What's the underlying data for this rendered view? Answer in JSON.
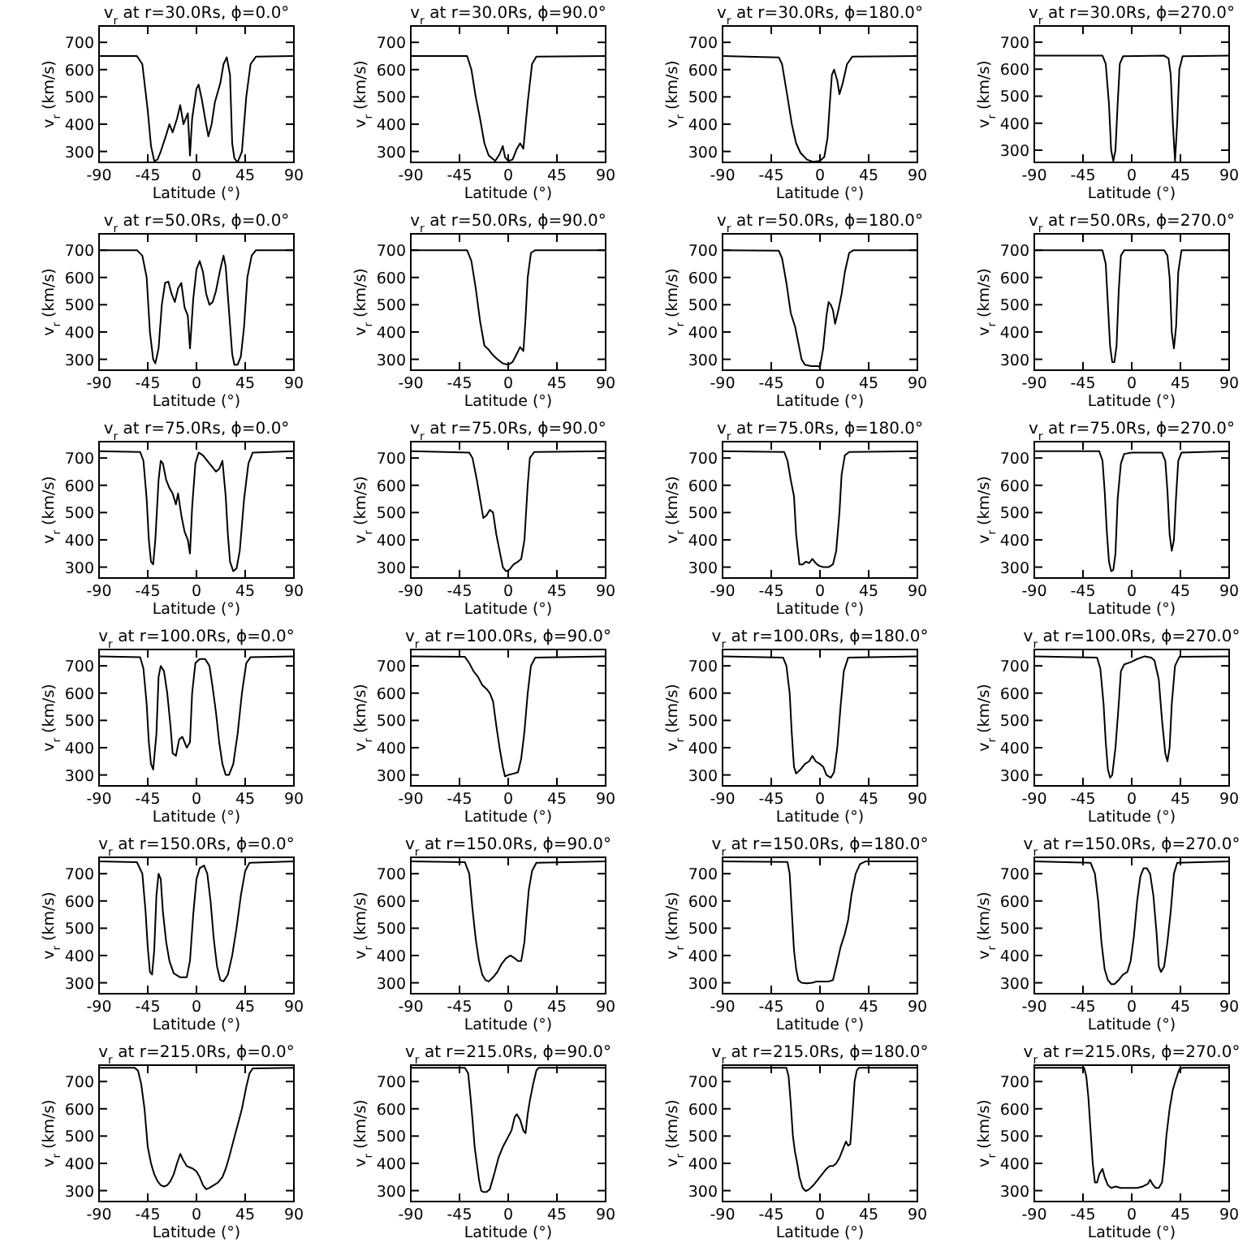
{
  "chart_data": [
    {
      "type": "line",
      "title": "v$_{r}$ at r=30.0Rs, ϕ=0.0°",
      "xlabel": "Latitude (°)",
      "ylabel": "v$_{r}$ (km/s)",
      "xlim": [
        -90,
        90
      ],
      "ylim": [
        260,
        760
      ],
      "xticks": [
        -90,
        -45,
        0,
        45,
        90
      ],
      "yticks": [
        300,
        400,
        500,
        600,
        700
      ],
      "color": "#000000",
      "x": [
        -90,
        -55,
        -50,
        -45,
        -42,
        -39,
        -36,
        -33,
        -28,
        -25,
        -22,
        -18,
        -15,
        -12,
        -8,
        -6,
        -4,
        0,
        2,
        5,
        8,
        11,
        14,
        17,
        22,
        25,
        28,
        31,
        33,
        35,
        38,
        42,
        46,
        50,
        55,
        90
      ],
      "values": [
        650,
        650,
        620,
        450,
        320,
        265,
        270,
        300,
        360,
        400,
        370,
        420,
        470,
        400,
        440,
        285,
        420,
        530,
        545,
        490,
        420,
        355,
        400,
        480,
        550,
        620,
        645,
        580,
        330,
        275,
        260,
        300,
        500,
        620,
        648,
        650
      ]
    },
    {
      "type": "line",
      "title": "v$_{r}$ at r=30.0Rs, ϕ=90.0°",
      "xlabel": "Latitude (°)",
      "ylabel": "v$_{r}$ (km/s)",
      "xlim": [
        -90,
        90
      ],
      "ylim": [
        260,
        760
      ],
      "xticks": [
        -90,
        -45,
        0,
        45,
        90
      ],
      "yticks": [
        300,
        400,
        500,
        600,
        700
      ],
      "color": "#000000",
      "x": [
        -90,
        -38,
        -34,
        -30,
        -26,
        -22,
        -18,
        -12,
        -8,
        -5,
        -3,
        0,
        4,
        8,
        11,
        14,
        18,
        22,
        26,
        90
      ],
      "values": [
        650,
        650,
        600,
        500,
        420,
        330,
        285,
        265,
        290,
        320,
        280,
        265,
        270,
        310,
        330,
        310,
        480,
        620,
        648,
        650
      ]
    },
    {
      "type": "line",
      "title": "v$_{r}$ at r=30.0Rs, ϕ=180.0°",
      "xlabel": "Latitude (°)",
      "ylabel": "v$_{r}$ (km/s)",
      "xlim": [
        -90,
        90
      ],
      "ylim": [
        260,
        760
      ],
      "xticks": [
        -90,
        -45,
        0,
        45,
        90
      ],
      "yticks": [
        300,
        400,
        500,
        600,
        700
      ],
      "color": "#000000",
      "x": [
        -90,
        -38,
        -35,
        -30,
        -26,
        -22,
        -18,
        -12,
        -6,
        0,
        4,
        7,
        9,
        11,
        13,
        16,
        18,
        21,
        25,
        30,
        90
      ],
      "values": [
        650,
        645,
        620,
        500,
        400,
        330,
        295,
        270,
        262,
        265,
        280,
        350,
        470,
        580,
        600,
        560,
        510,
        550,
        620,
        648,
        650
      ]
    },
    {
      "type": "line",
      "title": "v$_{r}$ at r=30.0Rs, ϕ=270.0°",
      "xlabel": "Latitude (°)",
      "ylabel": "v$_{r}$ (km/s)",
      "xlim": [
        -90,
        90
      ],
      "ylim": [
        255,
        760
      ],
      "xticks": [
        -90,
        -45,
        0,
        45,
        90
      ],
      "yticks": [
        300,
        400,
        500,
        600,
        700
      ],
      "color": "#000000",
      "x": [
        -90,
        -27,
        -24,
        -21,
        -19,
        -17,
        -15,
        -13,
        -11,
        -8,
        30,
        34,
        36,
        38,
        40,
        42,
        44,
        47,
        90
      ],
      "values": [
        650,
        650,
        620,
        470,
        300,
        260,
        300,
        470,
        620,
        648,
        650,
        640,
        580,
        400,
        260,
        400,
        600,
        648,
        650
      ]
    },
    {
      "type": "line",
      "title": "v$_{r}$ at r=50.0Rs, ϕ=0.0°",
      "xlabel": "Latitude (°)",
      "ylabel": "v$_{r}$ (km/s)",
      "xlim": [
        -90,
        90
      ],
      "ylim": [
        260,
        760
      ],
      "xticks": [
        -90,
        -45,
        0,
        45,
        90
      ],
      "yticks": [
        300,
        400,
        500,
        600,
        700
      ],
      "color": "#000000",
      "x": [
        -90,
        -55,
        -50,
        -46,
        -43,
        -40,
        -38,
        -35,
        -32,
        -29,
        -26,
        -23,
        -20,
        -17,
        -14,
        -11,
        -8,
        -6,
        -3,
        0,
        3,
        6,
        9,
        12,
        15,
        18,
        22,
        25,
        27,
        30,
        33,
        35,
        38,
        41,
        44,
        47,
        51,
        55,
        90
      ],
      "values": [
        700,
        700,
        680,
        600,
        400,
        300,
        285,
        340,
        500,
        580,
        585,
        540,
        510,
        560,
        580,
        490,
        460,
        340,
        520,
        630,
        660,
        620,
        540,
        500,
        510,
        550,
        630,
        680,
        640,
        480,
        320,
        280,
        280,
        310,
        420,
        600,
        680,
        700,
        700
      ]
    },
    {
      "type": "line",
      "title": "v$_{r}$ at r=50.0Rs, ϕ=90.0°",
      "xlabel": "Latitude (°)",
      "ylabel": "v$_{r}$ (km/s)",
      "xlim": [
        -90,
        90
      ],
      "ylim": [
        260,
        760
      ],
      "xticks": [
        -90,
        -45,
        0,
        45,
        90
      ],
      "yticks": [
        300,
        400,
        500,
        600,
        700
      ],
      "color": "#000000",
      "x": [
        -90,
        -38,
        -34,
        -30,
        -26,
        -22,
        -18,
        -14,
        -10,
        -5,
        0,
        4,
        8,
        11,
        14,
        16,
        18,
        21,
        25,
        90
      ],
      "values": [
        700,
        700,
        660,
        560,
        440,
        350,
        335,
        315,
        300,
        285,
        280,
        290,
        320,
        345,
        330,
        450,
        600,
        690,
        700,
        700
      ]
    },
    {
      "type": "line",
      "title": "v$_{r}$ at r=50.0Rs, ϕ=180.0°",
      "xlabel": "Latitude (°)",
      "ylabel": "v$_{r}$ (km/s)",
      "xlim": [
        -90,
        90
      ],
      "ylim": [
        260,
        760
      ],
      "xticks": [
        -90,
        -45,
        0,
        45,
        90
      ],
      "yticks": [
        300,
        400,
        500,
        600,
        700
      ],
      "color": "#000000",
      "x": [
        -90,
        -38,
        -35,
        -31,
        -27,
        -23,
        -20,
        -17,
        -14,
        -8,
        -2,
        0,
        3,
        6,
        8,
        10,
        12,
        14,
        17,
        20,
        23,
        27,
        31,
        90
      ],
      "values": [
        700,
        698,
        670,
        580,
        470,
        420,
        360,
        300,
        280,
        275,
        275,
        272,
        340,
        460,
        510,
        500,
        480,
        430,
        480,
        540,
        620,
        690,
        700,
        700
      ]
    },
    {
      "type": "line",
      "title": "v$_{r}$ at r=50.0Rs, ϕ=270.0°",
      "xlabel": "Latitude (°)",
      "ylabel": "v$_{r}$ (km/s)",
      "xlim": [
        -90,
        90
      ],
      "ylim": [
        260,
        760
      ],
      "xticks": [
        -90,
        -45,
        0,
        45,
        90
      ],
      "yticks": [
        300,
        400,
        500,
        600,
        700
      ],
      "color": "#000000",
      "x": [
        -90,
        -27,
        -24,
        -22,
        -20,
        -18,
        -16,
        -14,
        -12,
        -10,
        -7,
        30,
        33,
        35,
        37,
        39,
        41,
        43,
        46,
        90
      ],
      "values": [
        700,
        700,
        650,
        500,
        350,
        290,
        290,
        350,
        550,
        680,
        700,
        700,
        680,
        600,
        400,
        340,
        420,
        620,
        700,
        700
      ]
    },
    {
      "type": "line",
      "title": "v$_{r}$ at r=75.0Rs, ϕ=0.0°",
      "xlabel": "Latitude (°)",
      "ylabel": "v$_{r}$ (km/s)",
      "xlim": [
        -90,
        90
      ],
      "ylim": [
        260,
        760
      ],
      "xticks": [
        -90,
        -45,
        0,
        45,
        90
      ],
      "yticks": [
        300,
        400,
        500,
        600,
        700
      ],
      "color": "#000000",
      "x": [
        -90,
        -52,
        -49,
        -46,
        -44,
        -42,
        -40,
        -38,
        -35,
        -33,
        -31,
        -28,
        -25,
        -22,
        -19,
        -17,
        -14,
        -11,
        -8,
        -6,
        -4,
        -1,
        2,
        6,
        10,
        14,
        18,
        21,
        24,
        27,
        29,
        31,
        34,
        37,
        40,
        44,
        48,
        52,
        90
      ],
      "values": [
        725,
        722,
        690,
        550,
        400,
        320,
        310,
        400,
        620,
        690,
        680,
        620,
        590,
        570,
        530,
        570,
        490,
        430,
        400,
        350,
        520,
        680,
        720,
        710,
        690,
        670,
        650,
        660,
        690,
        560,
        420,
        320,
        285,
        295,
        360,
        550,
        680,
        720,
        725
      ]
    },
    {
      "type": "line",
      "title": "v$_{r}$ at r=75.0Rs, ϕ=90.0°",
      "xlabel": "Latitude (°)",
      "ylabel": "v$_{r}$ (km/s)",
      "xlim": [
        -90,
        90
      ],
      "ylim": [
        260,
        760
      ],
      "xticks": [
        -90,
        -45,
        0,
        45,
        90
      ],
      "yticks": [
        300,
        400,
        500,
        600,
        700
      ],
      "color": "#000000",
      "x": [
        -90,
        -36,
        -33,
        -29,
        -26,
        -23,
        -20,
        -17,
        -14,
        -11,
        -8,
        -5,
        -2,
        1,
        5,
        9,
        12,
        15,
        18,
        20,
        24,
        90
      ],
      "values": [
        725,
        720,
        700,
        620,
        550,
        480,
        490,
        510,
        500,
        420,
        360,
        300,
        285,
        290,
        310,
        320,
        330,
        400,
        600,
        700,
        722,
        725
      ]
    },
    {
      "type": "line",
      "title": "v$_{r}$ at r=75.0Rs, ϕ=180.0°",
      "xlabel": "Latitude (°)",
      "ylabel": "v$_{r}$ (km/s)",
      "xlim": [
        -90,
        90
      ],
      "ylim": [
        260,
        760
      ],
      "xticks": [
        -90,
        -45,
        0,
        45,
        90
      ],
      "yticks": [
        300,
        400,
        500,
        600,
        700
      ],
      "color": "#000000",
      "x": [
        -90,
        -33,
        -30,
        -27,
        -24,
        -22,
        -19,
        -16,
        -13,
        -10,
        -7,
        -4,
        -1,
        3,
        8,
        12,
        15,
        18,
        20,
        23,
        27,
        90
      ],
      "values": [
        725,
        722,
        690,
        620,
        560,
        420,
        310,
        310,
        320,
        315,
        330,
        315,
        305,
        300,
        300,
        310,
        360,
        500,
        640,
        710,
        722,
        725
      ]
    },
    {
      "type": "line",
      "title": "v$_{r}$ at r=75.0Rs, ϕ=270.0°",
      "xlabel": "Latitude (°)",
      "ylabel": "v$_{r}$ (km/s)",
      "xlim": [
        -90,
        90
      ],
      "ylim": [
        260,
        760
      ],
      "xticks": [
        -90,
        -45,
        0,
        45,
        90
      ],
      "yticks": [
        300,
        400,
        500,
        600,
        700
      ],
      "color": "#000000",
      "x": [
        -90,
        -30,
        -27,
        -25,
        -23,
        -21,
        -19,
        -17,
        -15,
        -13,
        -10,
        -7,
        0,
        10,
        28,
        31,
        33,
        35,
        37,
        39,
        41,
        43,
        46,
        90
      ],
      "values": [
        725,
        725,
        690,
        580,
        430,
        320,
        285,
        290,
        350,
        550,
        680,
        715,
        720,
        720,
        720,
        690,
        580,
        420,
        360,
        400,
        560,
        690,
        720,
        725
      ]
    },
    {
      "type": "line",
      "title": "v$_{r}$ at r=100.0Rs, ϕ=0.0°",
      "xlabel": "Latitude (°)",
      "ylabel": "v$_{r}$ (km/s)",
      "xlim": [
        -90,
        90
      ],
      "ylim": [
        260,
        760
      ],
      "xticks": [
        -90,
        -45,
        0,
        45,
        90
      ],
      "yticks": [
        300,
        400,
        500,
        600,
        700
      ],
      "color": "#000000",
      "x": [
        -90,
        -52,
        -49,
        -46,
        -44,
        -42,
        -40,
        -37,
        -35,
        -33,
        -30,
        -27,
        -24,
        -22,
        -19,
        -16,
        -13,
        -11,
        -9,
        -6,
        -4,
        -1,
        3,
        8,
        12,
        15,
        18,
        21,
        24,
        27,
        30,
        34,
        38,
        42,
        46,
        50,
        90
      ],
      "values": [
        735,
        732,
        690,
        560,
        420,
        340,
        320,
        450,
        660,
        700,
        680,
        600,
        480,
        380,
        370,
        430,
        440,
        420,
        400,
        420,
        600,
        710,
        725,
        725,
        700,
        620,
        530,
        420,
        340,
        300,
        300,
        340,
        450,
        600,
        710,
        732,
        735
      ]
    },
    {
      "type": "line",
      "title": "v$_{r}$ at r=100.0Rs, ϕ=90.0°",
      "xlabel": "Latitude (°)",
      "ylabel": "v$_{r}$ (km/s)",
      "xlim": [
        -90,
        90
      ],
      "ylim": [
        260,
        760
      ],
      "xticks": [
        -90,
        -45,
        0,
        45,
        90
      ],
      "yticks": [
        300,
        400,
        500,
        600,
        700
      ],
      "color": "#000000",
      "x": [
        -90,
        -40,
        -36,
        -32,
        -28,
        -24,
        -20,
        -17,
        -14,
        -11,
        -8,
        -5,
        -3,
        0,
        5,
        9,
        12,
        15,
        18,
        21,
        25,
        90
      ],
      "values": [
        735,
        733,
        710,
        680,
        660,
        630,
        615,
        600,
        570,
        480,
        400,
        330,
        295,
        300,
        305,
        310,
        360,
        460,
        600,
        700,
        730,
        735
      ]
    },
    {
      "type": "line",
      "title": "v$_{r}$ at r=100.0Rs, ϕ=180.0°",
      "xlabel": "Latitude (°)",
      "ylabel": "v$_{r}$ (km/s)",
      "xlim": [
        -90,
        90
      ],
      "ylim": [
        260,
        760
      ],
      "xticks": [
        -90,
        -45,
        0,
        45,
        90
      ],
      "yticks": [
        300,
        400,
        500,
        600,
        700
      ],
      "color": "#000000",
      "x": [
        -90,
        -34,
        -31,
        -28,
        -26,
        -24,
        -22,
        -18,
        -14,
        -10,
        -7,
        -4,
        0,
        3,
        6,
        10,
        13,
        16,
        19,
        22,
        26,
        90
      ],
      "values": [
        735,
        730,
        700,
        600,
        450,
        330,
        305,
        320,
        340,
        350,
        370,
        350,
        340,
        330,
        300,
        290,
        310,
        400,
        550,
        680,
        730,
        735
      ]
    },
    {
      "type": "line",
      "title": "v$_{r}$ at r=100.0Rs, ϕ=270.0°",
      "xlabel": "Latitude (°)",
      "ylabel": "v$_{r}$ (km/s)",
      "xlim": [
        -90,
        90
      ],
      "ylim": [
        260,
        760
      ],
      "xticks": [
        -90,
        -45,
        0,
        45,
        90
      ],
      "yticks": [
        300,
        400,
        500,
        600,
        700
      ],
      "color": "#000000",
      "x": [
        -90,
        -32,
        -29,
        -26,
        -24,
        -22,
        -20,
        -18,
        -15,
        -12,
        -10,
        -7,
        0,
        5,
        12,
        18,
        21,
        25,
        28,
        31,
        33,
        35,
        37,
        40,
        44,
        90
      ],
      "values": [
        735,
        730,
        690,
        560,
        420,
        320,
        290,
        300,
        400,
        560,
        680,
        705,
        715,
        725,
        735,
        730,
        720,
        650,
        500,
        380,
        350,
        400,
        560,
        700,
        733,
        735
      ]
    },
    {
      "type": "line",
      "title": "v$_{r}$ at r=150.0Rs, ϕ=0.0°",
      "xlabel": "Latitude (°)",
      "ylabel": "v$_{r}$ (km/s)",
      "xlim": [
        -90,
        90
      ],
      "ylim": [
        260,
        760
      ],
      "xticks": [
        -90,
        -45,
        0,
        45,
        90
      ],
      "yticks": [
        300,
        400,
        500,
        600,
        700
      ],
      "color": "#000000",
      "x": [
        -90,
        -55,
        -50,
        -47,
        -45,
        -43,
        -41,
        -39,
        -37,
        -35,
        -33,
        -31,
        -28,
        -25,
        -21,
        -15,
        -9,
        -6,
        -3,
        0,
        3,
        7,
        10,
        13,
        16,
        19,
        22,
        25,
        29,
        33,
        37,
        41,
        45,
        49,
        90
      ],
      "values": [
        745,
        742,
        700,
        560,
        430,
        340,
        330,
        420,
        620,
        700,
        680,
        560,
        450,
        380,
        335,
        320,
        320,
        380,
        550,
        680,
        720,
        730,
        700,
        600,
        460,
        360,
        310,
        305,
        330,
        400,
        500,
        620,
        710,
        740,
        745
      ]
    },
    {
      "type": "line",
      "title": "v$_{r}$ at r=150.0Rs, ϕ=90.0°",
      "xlabel": "Latitude (°)",
      "ylabel": "v$_{r}$ (km/s)",
      "xlim": [
        -90,
        90
      ],
      "ylim": [
        260,
        760
      ],
      "xticks": [
        -90,
        -45,
        0,
        45,
        90
      ],
      "yticks": [
        300,
        400,
        500,
        600,
        700
      ],
      "color": "#000000",
      "x": [
        -90,
        -40,
        -36,
        -33,
        -30,
        -27,
        -24,
        -21,
        -18,
        -14,
        -10,
        -6,
        -2,
        2,
        6,
        9,
        12,
        15,
        17,
        19,
        22,
        26,
        90
      ],
      "values": [
        745,
        742,
        700,
        570,
        460,
        380,
        330,
        310,
        305,
        320,
        340,
        370,
        390,
        400,
        390,
        380,
        380,
        450,
        550,
        640,
        710,
        740,
        745
      ]
    },
    {
      "type": "line",
      "title": "v$_{r}$ at r=150.0Rs, ϕ=180.0°",
      "xlabel": "Latitude (°)",
      "ylabel": "v$_{r}$ (km/s)",
      "xlim": [
        -90,
        90
      ],
      "ylim": [
        260,
        760
      ],
      "xticks": [
        -90,
        -45,
        0,
        45,
        90
      ],
      "yticks": [
        300,
        400,
        500,
        600,
        700
      ],
      "color": "#000000",
      "x": [
        -90,
        -30,
        -28,
        -26,
        -24,
        -22,
        -20,
        -17,
        -12,
        -7,
        -3,
        3,
        8,
        12,
        15,
        19,
        23,
        26,
        29,
        33,
        37,
        42,
        90
      ],
      "values": [
        745,
        743,
        700,
        560,
        420,
        350,
        310,
        300,
        298,
        300,
        305,
        305,
        305,
        310,
        360,
        430,
        480,
        530,
        620,
        700,
        735,
        745,
        745
      ]
    },
    {
      "type": "line",
      "title": "v$_{r}$ at r=150.0Rs, ϕ=270.0°",
      "xlabel": "Latitude (°)",
      "ylabel": "v$_{r}$ (km/s)",
      "xlim": [
        -90,
        90
      ],
      "ylim": [
        260,
        760
      ],
      "xticks": [
        -90,
        -45,
        0,
        45,
        90
      ],
      "yticks": [
        300,
        400,
        500,
        600,
        700
      ],
      "color": "#000000",
      "x": [
        -90,
        -38,
        -34,
        -31,
        -28,
        -25,
        -22,
        -19,
        -16,
        -12,
        -8,
        -4,
        -1,
        2,
        5,
        8,
        11,
        14,
        17,
        20,
        23,
        25,
        27,
        30,
        33,
        36,
        39,
        42,
        90
      ],
      "values": [
        745,
        740,
        700,
        600,
        450,
        350,
        310,
        295,
        295,
        310,
        330,
        340,
        380,
        470,
        600,
        690,
        720,
        720,
        700,
        620,
        480,
        360,
        340,
        360,
        450,
        560,
        700,
        740,
        745
      ]
    },
    {
      "type": "line",
      "title": "v$_{r}$ at r=215.0Rs, ϕ=0.0°",
      "xlabel": "Latitude (°)",
      "ylabel": "v$_{r}$ (km/s)",
      "xlim": [
        -90,
        90
      ],
      "ylim": [
        260,
        760
      ],
      "xticks": [
        -90,
        -45,
        0,
        45,
        90
      ],
      "yticks": [
        300,
        400,
        500,
        600,
        700
      ],
      "color": "#000000",
      "x": [
        -90,
        -57,
        -54,
        -51,
        -48,
        -45,
        -42,
        -39,
        -36,
        -33,
        -30,
        -27,
        -24,
        -21,
        -18,
        -15,
        -12,
        -9,
        -6,
        -3,
        0,
        3,
        6,
        9,
        12,
        16,
        20,
        24,
        27,
        30,
        34,
        38,
        42,
        46,
        49,
        52,
        90
      ],
      "values": [
        750,
        750,
        740,
        690,
        600,
        460,
        400,
        360,
        335,
        320,
        315,
        320,
        335,
        360,
        400,
        435,
        410,
        390,
        385,
        380,
        370,
        350,
        320,
        305,
        310,
        320,
        330,
        350,
        380,
        420,
        480,
        540,
        600,
        680,
        730,
        748,
        750
      ]
    },
    {
      "type": "line",
      "title": "v$_{r}$ at r=215.0Rs, ϕ=90.0°",
      "xlabel": "Latitude (°)",
      "ylabel": "v$_{r}$ (km/s)",
      "xlim": [
        -90,
        90
      ],
      "ylim": [
        260,
        760
      ],
      "xticks": [
        -90,
        -45,
        0,
        45,
        90
      ],
      "yticks": [
        300,
        400,
        500,
        600,
        700
      ],
      "color": "#000000",
      "x": [
        -90,
        -40,
        -37,
        -35,
        -33,
        -31,
        -29,
        -27,
        -25,
        -23,
        -20,
        -17,
        -13,
        -9,
        -5,
        -1,
        3,
        6,
        8,
        11,
        14,
        16,
        18,
        20,
        23,
        26,
        28,
        90
      ],
      "values": [
        750,
        750,
        730,
        650,
        560,
        460,
        400,
        340,
        300,
        295,
        295,
        305,
        360,
        420,
        460,
        490,
        520,
        570,
        580,
        560,
        520,
        510,
        580,
        630,
        690,
        740,
        750,
        750
      ]
    },
    {
      "type": "line",
      "title": "v$_{r}$ at r=215.0Rs, ϕ=180.0°",
      "xlabel": "Latitude (°)",
      "ylabel": "v$_{r}$ (km/s)",
      "xlim": [
        -90,
        90
      ],
      "ylim": [
        260,
        760
      ],
      "xticks": [
        -90,
        -45,
        0,
        45,
        90
      ],
      "yticks": [
        300,
        400,
        500,
        600,
        700
      ],
      "color": "#000000",
      "x": [
        -90,
        -31,
        -29,
        -27,
        -25,
        -23,
        -21,
        -19,
        -16,
        -13,
        -10,
        -6,
        -2,
        2,
        6,
        9,
        12,
        15,
        18,
        21,
        24,
        26,
        28,
        30,
        32,
        34,
        36,
        90
      ],
      "values": [
        750,
        750,
        720,
        620,
        500,
        440,
        400,
        350,
        310,
        298,
        305,
        320,
        340,
        360,
        380,
        390,
        390,
        400,
        420,
        450,
        480,
        465,
        470,
        580,
        700,
        740,
        750,
        750
      ]
    },
    {
      "type": "line",
      "title": "v$_{r}$ at r=215.0Rs, ϕ=270.0°",
      "xlabel": "Latitude (°)",
      "ylabel": "v$_{r}$ (km/s)",
      "xlim": [
        -90,
        90
      ],
      "ylim": [
        260,
        760
      ],
      "xticks": [
        -90,
        -45,
        0,
        45,
        90
      ],
      "yticks": [
        300,
        400,
        500,
        600,
        700
      ],
      "color": "#000000",
      "x": [
        -90,
        -44,
        -42,
        -40,
        -38,
        -36,
        -34,
        -32,
        -30,
        -27,
        -25,
        -22,
        -19,
        -15,
        -10,
        -5,
        0,
        5,
        10,
        15,
        17,
        19,
        22,
        25,
        28,
        30,
        32,
        35,
        38,
        41,
        44,
        47,
        90
      ],
      "values": [
        750,
        750,
        720,
        640,
        520,
        400,
        330,
        330,
        360,
        380,
        350,
        320,
        310,
        315,
        310,
        310,
        310,
        310,
        315,
        325,
        340,
        325,
        310,
        310,
        330,
        400,
        500,
        600,
        670,
        710,
        745,
        750,
        750
      ]
    }
  ]
}
